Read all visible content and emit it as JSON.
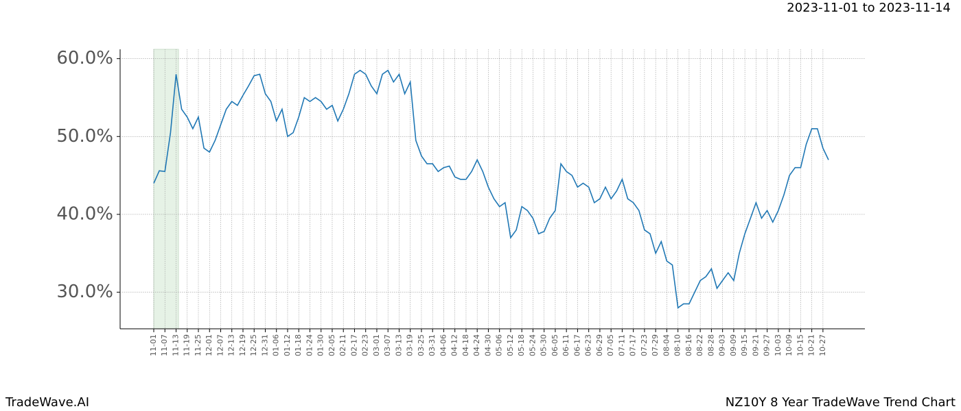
{
  "chart_data": {
    "type": "line",
    "date_range": "2023-11-01 to 2023-11-14",
    "watermark": "TradeWave.AI",
    "title": "NZ10Y 8 Year TradeWave Trend Chart",
    "x": [
      "11-01",
      "11-04",
      "11-07",
      "11-10",
      "11-13",
      "11-16",
      "11-19",
      "11-22",
      "11-25",
      "11-28",
      "12-01",
      "12-04",
      "12-07",
      "12-10",
      "12-13",
      "12-16",
      "12-19",
      "12-22",
      "12-25",
      "12-28",
      "12-31",
      "01-03",
      "01-06",
      "01-09",
      "01-12",
      "01-15",
      "01-18",
      "01-21",
      "01-24",
      "01-27",
      "01-30",
      "02-02",
      "02-05",
      "02-08",
      "02-11",
      "02-14",
      "02-17",
      "02-20",
      "02-23",
      "02-26",
      "03-01",
      "03-04",
      "03-07",
      "03-10",
      "03-13",
      "03-16",
      "03-19",
      "03-22",
      "03-25",
      "03-28",
      "03-31",
      "04-03",
      "04-06",
      "04-09",
      "04-12",
      "04-15",
      "04-18",
      "04-21",
      "04-24",
      "04-27",
      "04-30",
      "05-03",
      "05-06",
      "05-09",
      "05-12",
      "05-15",
      "05-18",
      "05-21",
      "05-24",
      "05-27",
      "05-30",
      "06-02",
      "06-05",
      "06-08",
      "06-11",
      "06-14",
      "06-17",
      "06-20",
      "06-23",
      "06-26",
      "06-29",
      "07-02",
      "07-05",
      "07-08",
      "07-11",
      "07-14",
      "07-17",
      "07-20",
      "07-23",
      "07-26",
      "07-29",
      "08-01",
      "08-04",
      "08-07",
      "08-10",
      "08-13",
      "08-16",
      "08-19",
      "08-22",
      "08-25",
      "08-28",
      "08-31",
      "09-03",
      "09-06",
      "09-09",
      "09-12",
      "09-15",
      "09-18",
      "09-21",
      "09-24",
      "09-27",
      "09-30",
      "10-03",
      "10-06",
      "10-09",
      "10-12",
      "10-15",
      "10-18",
      "10-21",
      "10-24",
      "10-27",
      "10-30"
    ],
    "series": [
      {
        "color": "#1f77b4",
        "values": [
          44.0,
          45.6,
          45.5,
          50.5,
          58.0,
          53.5,
          52.5,
          51.0,
          52.5,
          48.5,
          48.0,
          49.5,
          51.5,
          53.5,
          54.5,
          54.0,
          55.3,
          56.5,
          57.8,
          58.0,
          55.5,
          54.5,
          52.0,
          53.5,
          50.0,
          50.5,
          52.5,
          55.0,
          54.5,
          55.0,
          54.5,
          53.5,
          54.0,
          52.0,
          53.5,
          55.5,
          58.0,
          58.5,
          58.0,
          56.5,
          55.5,
          58.0,
          58.5,
          57.0,
          58.0,
          55.5,
          57.0,
          49.5,
          47.5,
          46.5,
          46.5,
          45.5,
          46.0,
          46.2,
          44.8,
          44.5,
          44.5,
          45.5,
          47.0,
          45.5,
          43.5,
          42.0,
          41.0,
          41.5,
          37.0,
          38.0,
          41.0,
          40.5,
          39.5,
          37.5,
          37.8,
          39.5,
          40.5,
          46.5,
          45.5,
          45.0,
          43.5,
          44.0,
          43.5,
          41.5,
          42.0,
          43.5,
          42.0,
          43.0,
          44.5,
          42.0,
          41.5,
          40.5,
          38.0,
          37.5,
          35.0,
          36.5,
          34.0,
          33.5,
          28.0,
          28.5,
          28.5,
          30.0,
          31.5,
          32.0,
          33.0,
          30.5,
          31.5,
          32.5,
          31.5,
          35.0,
          37.5,
          39.5,
          41.5,
          39.5,
          40.5,
          39.0,
          40.5,
          42.5,
          45.0,
          46.0,
          46.0,
          49.0,
          51.0,
          51.0,
          48.5,
          47.0
        ]
      }
    ],
    "xticks": [
      "11-01",
      "11-07",
      "11-13",
      "11-19",
      "11-25",
      "12-01",
      "12-07",
      "12-13",
      "12-19",
      "12-25",
      "12-31",
      "01-06",
      "01-12",
      "01-18",
      "01-24",
      "01-30",
      "02-05",
      "02-11",
      "02-17",
      "02-23",
      "03-01",
      "03-07",
      "03-13",
      "03-19",
      "03-25",
      "03-31",
      "04-06",
      "04-12",
      "04-18",
      "04-24",
      "04-30",
      "05-06",
      "05-12",
      "05-18",
      "05-24",
      "05-30",
      "06-05",
      "06-11",
      "06-17",
      "06-23",
      "06-29",
      "07-05",
      "07-11",
      "07-17",
      "07-23",
      "07-29",
      "08-04",
      "08-10",
      "08-16",
      "08-22",
      "08-28",
      "09-03",
      "09-09",
      "09-15",
      "09-21",
      "09-27",
      "10-03",
      "10-09",
      "10-15",
      "10-21",
      "10-27"
    ],
    "ylim": [
      25.3,
      61.2
    ],
    "yticks": [
      {
        "value": 30,
        "label": "30.0%"
      },
      {
        "value": 40,
        "label": "40.0%"
      },
      {
        "value": 50,
        "label": "50.0%"
      },
      {
        "value": 60,
        "label": "60.0%"
      }
    ],
    "grid": true
  }
}
